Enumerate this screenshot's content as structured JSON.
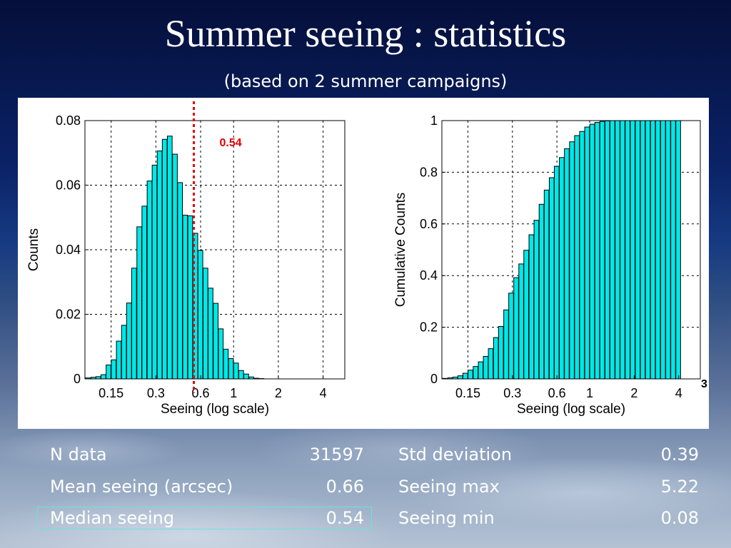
{
  "slide": {
    "title": "Summer seeing : statistics",
    "subtitle": "(based on 2 summer campaigns)",
    "side_label": "3"
  },
  "stats": {
    "left": [
      {
        "label": "N data",
        "value": "31597"
      },
      {
        "label": "Mean seeing (arcsec)",
        "value": "0.66"
      },
      {
        "label": "Median seeing",
        "value": "0.54"
      }
    ],
    "right": [
      {
        "label": "Std deviation",
        "value": "0.39"
      },
      {
        "label": "Seeing max",
        "value": "5.22"
      },
      {
        "label": "Seeing min",
        "value": "0.08"
      }
    ]
  },
  "colors": {
    "bar_fill": "#00e8e8",
    "bar_stroke": "#000000",
    "median_line": "#e00000",
    "text": "#ffffff",
    "highlight_border": "#6fe0e0"
  },
  "chart_data": [
    {
      "type": "bar",
      "xlabel": "Seeing (log scale)",
      "ylabel": "Counts",
      "xscale": "log",
      "xlim": [
        0.1,
        5.6
      ],
      "ylim": [
        0,
        0.08
      ],
      "xticks": [
        0.15,
        0.3,
        0.6,
        1,
        2,
        4
      ],
      "xtick_labels": [
        "0.15",
        "0.3",
        "0.6",
        "1",
        "2",
        "4"
      ],
      "yticks": [
        0,
        0.02,
        0.04,
        0.06,
        0.08
      ],
      "ytick_labels": [
        "0",
        "0.02",
        "0.04",
        "0.06",
        "0.08"
      ],
      "grid": true,
      "annotation": {
        "text": "0.54",
        "x": 0.54
      },
      "x": [
        0.105,
        0.114,
        0.123,
        0.133,
        0.144,
        0.156,
        0.169,
        0.183,
        0.198,
        0.214,
        0.232,
        0.251,
        0.272,
        0.294,
        0.318,
        0.344,
        0.372,
        0.403,
        0.436,
        0.472,
        0.511,
        0.553,
        0.598,
        0.647,
        0.7,
        0.758,
        0.82,
        0.887,
        0.96,
        1.039,
        1.124,
        1.216,
        1.316,
        1.424,
        1.541,
        1.667,
        1.804,
        1.952,
        2.112,
        2.285,
        2.473,
        2.676,
        2.895,
        3.133,
        3.39,
        3.668,
        3.969
      ],
      "values": [
        0.0003,
        0.0005,
        0.0007,
        0.0013,
        0.0043,
        0.0059,
        0.0117,
        0.0166,
        0.0235,
        0.0343,
        0.0471,
        0.0535,
        0.0613,
        0.0662,
        0.0706,
        0.0742,
        0.0752,
        0.0696,
        0.0608,
        0.0507,
        0.0505,
        0.0451,
        0.0398,
        0.0343,
        0.0281,
        0.0234,
        0.0155,
        0.0092,
        0.0063,
        0.0049,
        0.0026,
        0.0015,
        0.0006,
        0.0002,
        0.0001,
        0.0,
        0.0,
        0.0,
        0.0,
        0.0,
        0.0,
        0.0,
        0.0,
        0.0,
        0.0,
        0.0,
        0.0
      ]
    },
    {
      "type": "bar",
      "xlabel": "Seeing (log scale)",
      "ylabel": "Cumulative Counts",
      "xscale": "log",
      "xlim": [
        0.1,
        5.6
      ],
      "ylim": [
        0,
        1
      ],
      "xticks": [
        0.15,
        0.3,
        0.6,
        1,
        2,
        4
      ],
      "xtick_labels": [
        "0.15",
        "0.3",
        "0.6",
        "1",
        "2",
        "4"
      ],
      "yticks": [
        0,
        0.2,
        0.4,
        0.6,
        0.8,
        1
      ],
      "ytick_labels": [
        "0",
        "0.2",
        "0.4",
        "0.6",
        "0.8",
        "1"
      ],
      "grid": true,
      "x": [
        0.105,
        0.114,
        0.123,
        0.133,
        0.144,
        0.156,
        0.169,
        0.183,
        0.198,
        0.214,
        0.232,
        0.251,
        0.272,
        0.294,
        0.318,
        0.344,
        0.372,
        0.403,
        0.436,
        0.472,
        0.511,
        0.553,
        0.598,
        0.647,
        0.7,
        0.758,
        0.82,
        0.887,
        0.96,
        1.039,
        1.124,
        1.216,
        1.316,
        1.424,
        1.541,
        1.667,
        1.804,
        1.952,
        2.112,
        2.285,
        2.473,
        2.676,
        2.895,
        3.133,
        3.39,
        3.668,
        3.969
      ],
      "values": [
        0.002,
        0.004,
        0.007,
        0.012,
        0.022,
        0.034,
        0.048,
        0.066,
        0.087,
        0.117,
        0.16,
        0.203,
        0.267,
        0.332,
        0.392,
        0.445,
        0.498,
        0.558,
        0.614,
        0.676,
        0.731,
        0.779,
        0.823,
        0.857,
        0.891,
        0.918,
        0.942,
        0.958,
        0.975,
        0.986,
        0.993,
        0.997,
        0.999,
        1.0,
        1.0,
        1.0,
        1.0,
        1.0,
        1.0,
        1.0,
        1.0,
        1.0,
        1.0,
        1.0,
        1.0,
        1.0,
        1.0
      ]
    }
  ]
}
